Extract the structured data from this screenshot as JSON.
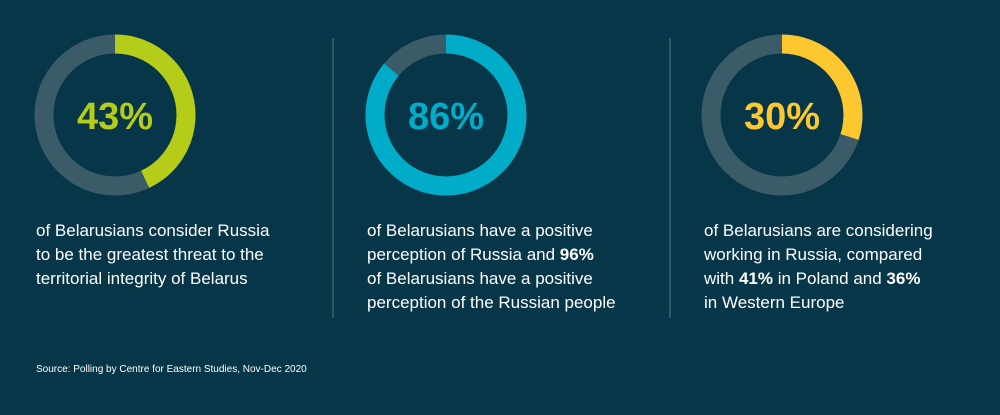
{
  "chart_data": [
    {
      "type": "donut",
      "values": [
        43
      ],
      "value_labels": [
        "43%"
      ],
      "color": "#b5cc18",
      "ylim": [
        0,
        100
      ],
      "caption": [
        [
          {
            "text": "of Belarusians consider Russia",
            "bold": false
          }
        ],
        [
          {
            "text": "to be the greatest threat to the",
            "bold": false
          }
        ],
        [
          {
            "text": "territorial integrity of Belarus",
            "bold": false
          }
        ]
      ]
    },
    {
      "type": "donut",
      "values": [
        86
      ],
      "value_labels": [
        "86%"
      ],
      "color": "#00acc8",
      "ylim": [
        0,
        100
      ],
      "caption": [
        [
          {
            "text": "of Belarusians have a positive",
            "bold": false
          }
        ],
        [
          {
            "text": "perception of Russia and ",
            "bold": false
          },
          {
            "text": "96%",
            "bold": true
          }
        ],
        [
          {
            "text": "of Belarusians have a positive",
            "bold": false
          }
        ],
        [
          {
            "text": "perception of the Russian people",
            "bold": false
          }
        ]
      ]
    },
    {
      "type": "donut",
      "values": [
        30
      ],
      "value_labels": [
        "30%"
      ],
      "color": "#fdc82f",
      "ylim": [
        0,
        100
      ],
      "caption": [
        [
          {
            "text": "of Belarusians are considering",
            "bold": false
          }
        ],
        [
          {
            "text": "working in Russia, compared",
            "bold": false
          }
        ],
        [
          {
            "text": "with ",
            "bold": false
          },
          {
            "text": "41%",
            "bold": true
          },
          {
            "text": " in Poland and ",
            "bold": false
          },
          {
            "text": "36%",
            "bold": true
          }
        ],
        [
          {
            "text": "in Western Europe",
            "bold": false
          }
        ]
      ]
    }
  ],
  "source": "Source: Polling by Centre for Eastern Studies, Nov-Dec 2020"
}
